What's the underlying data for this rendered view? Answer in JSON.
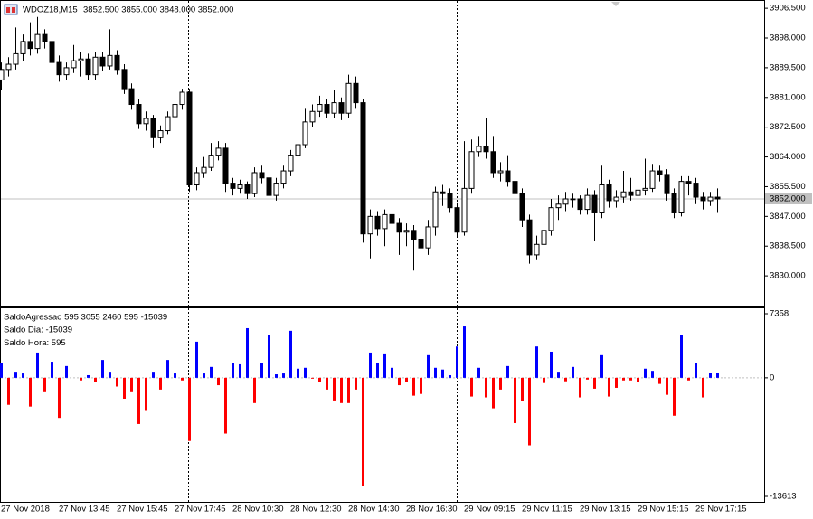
{
  "chart_data": [
    {
      "type": "candlestick",
      "title": "WDOZ18,M15",
      "subtitle": "3852.500 3855.000 3848.000 3852.000",
      "categories": [
        "27 Nov 2018",
        null,
        null,
        null,
        null,
        null,
        null,
        null,
        "27 Nov 13:45",
        null,
        null,
        null,
        null,
        null,
        null,
        null,
        "27 Nov 15:45",
        null,
        null,
        null,
        null,
        null,
        null,
        null,
        "27 Nov 17:45",
        null,
        null,
        null,
        null,
        null,
        null,
        null,
        "28 Nov 10:30",
        null,
        null,
        null,
        null,
        null,
        null,
        null,
        "28 Nov 12:30",
        null,
        null,
        null,
        null,
        null,
        null,
        null,
        "28 Nov 14:30",
        null,
        null,
        null,
        null,
        null,
        null,
        null,
        "28 Nov 16:30",
        null,
        null,
        null,
        null,
        null,
        null,
        null,
        "29 Nov 09:15",
        null,
        null,
        null,
        null,
        null,
        null,
        null,
        "29 Nov 11:15",
        null,
        null,
        null,
        null,
        null,
        null,
        null,
        "29 Nov 13:15",
        null,
        null,
        null,
        null,
        null,
        null,
        null,
        "29 Nov 15:15",
        null,
        null,
        null,
        null,
        null,
        null,
        null,
        "29 Nov 17:15",
        null,
        null,
        null
      ],
      "open": [
        3886.0,
        3889.0,
        3890.5,
        3893.5,
        3897.0,
        3895.0,
        3899.0,
        3897.0,
        3891.0,
        3887.5,
        3889.5,
        3891.5,
        3892.0,
        3887.5,
        3892.5,
        3890.0,
        3893.0,
        3889.0,
        3883.5,
        3879.0,
        3873.5,
        3875.0,
        3869.5,
        3871.5,
        3875.5,
        3879.0,
        3882.5,
        3856.0,
        3859.5,
        3861.0,
        3864.5,
        3866.5,
        3856.5,
        3855.0,
        3856.0,
        3853.5,
        3859.5,
        3858.0,
        3853.0,
        3856.5,
        3860.0,
        3864.5,
        3867.5,
        3874.0,
        3877.0,
        3879.0,
        3876.5,
        3879.5,
        3876.5,
        3885.0,
        3879.5,
        3842.0,
        3847.0,
        3843.5,
        3847.5,
        3845.0,
        3842.5,
        3843.0,
        3840.5,
        3838.0,
        3844.0,
        3854.0,
        3853.5,
        3849.5,
        3842.5,
        3855.0,
        3865.5,
        3867.0,
        3865.5,
        3859.5,
        3860.0,
        3857.0,
        3853.5,
        3846.0,
        3836.0,
        3839.0,
        3843.0,
        3849.5,
        3850.5,
        3852.0,
        3852.0,
        3849.0,
        3853.0,
        3848.0,
        3856.0,
        3851.5,
        3852.5,
        3854.0,
        3853.0,
        3854.5,
        3855.0,
        3860.0,
        3859.0,
        3853.5,
        3848.0,
        3857.0,
        3856.5,
        3852.5,
        3851.5,
        3852.5
      ],
      "high": [
        3891.0,
        3892.5,
        3901.0,
        3899.0,
        3902.5,
        3904.0,
        3900.5,
        3898.5,
        3893.0,
        3891.0,
        3896.0,
        3894.0,
        3893.5,
        3894.0,
        3894.0,
        3900.5,
        3894.5,
        3890.5,
        3885.0,
        3880.5,
        3877.0,
        3876.0,
        3873.0,
        3877.0,
        3880.5,
        3883.5,
        3883.5,
        3861.0,
        3864.0,
        3868.0,
        3868.5,
        3868.0,
        3858.0,
        3857.5,
        3857.0,
        3861.0,
        3861.5,
        3859.5,
        3858.0,
        3861.5,
        3866.0,
        3869.0,
        3878.0,
        3879.0,
        3881.5,
        3880.5,
        3883.0,
        3881.0,
        3887.5,
        3887.0,
        3880.5,
        3849.0,
        3848.5,
        3849.0,
        3850.5,
        3846.5,
        3845.0,
        3844.5,
        3842.0,
        3846.0,
        3855.5,
        3856.0,
        3855.0,
        3851.0,
        3868.5,
        3869.0,
        3870.0,
        3875.0,
        3870.0,
        3862.5,
        3864.5,
        3858.5,
        3855.0,
        3847.5,
        3841.5,
        3846.0,
        3852.0,
        3853.0,
        3854.0,
        3853.5,
        3853.0,
        3855.0,
        3854.5,
        3861.5,
        3857.5,
        3854.5,
        3860.0,
        3858.0,
        3857.0,
        3863.5,
        3862.0,
        3861.5,
        3860.5,
        3855.0,
        3858.5,
        3858.5,
        3858.0,
        3854.0,
        3854.0,
        3855.0
      ],
      "low": [
        3883.0,
        3887.0,
        3889.0,
        3891.5,
        3893.0,
        3893.5,
        3895.0,
        3889.0,
        3885.5,
        3886.0,
        3888.0,
        3887.0,
        3886.0,
        3886.0,
        3888.5,
        3889.0,
        3887.5,
        3882.0,
        3877.5,
        3872.0,
        3871.5,
        3866.5,
        3868.0,
        3870.5,
        3874.0,
        3877.5,
        3854.0,
        3854.5,
        3858.0,
        3860.0,
        3863.0,
        3854.0,
        3853.0,
        3853.5,
        3852.0,
        3852.5,
        3856.5,
        3844.5,
        3851.5,
        3855.0,
        3858.5,
        3863.0,
        3866.5,
        3872.5,
        3875.5,
        3875.0,
        3875.0,
        3874.5,
        3875.0,
        3878.0,
        3839.5,
        3835.0,
        3841.5,
        3838.5,
        3834.5,
        3836.0,
        3838.5,
        3831.5,
        3835.5,
        3836.0,
        3841.5,
        3850.0,
        3848.0,
        3841.0,
        3841.5,
        3853.5,
        3864.0,
        3863.5,
        3858.0,
        3857.0,
        3855.5,
        3851.0,
        3844.0,
        3833.5,
        3834.5,
        3837.5,
        3841.5,
        3846.0,
        3848.5,
        3849.5,
        3847.5,
        3847.5,
        3840.0,
        3846.5,
        3849.5,
        3849.5,
        3851.0,
        3851.5,
        3851.5,
        3853.0,
        3854.0,
        3857.0,
        3851.5,
        3846.5,
        3847.0,
        3853.0,
        3850.5,
        3849.0,
        3850.0,
        3848.0
      ],
      "close": [
        3889.0,
        3890.5,
        3893.5,
        3897.0,
        3895.0,
        3899.0,
        3897.0,
        3891.0,
        3887.5,
        3889.5,
        3891.5,
        3892.0,
        3887.5,
        3892.5,
        3890.0,
        3893.0,
        3889.0,
        3883.5,
        3879.0,
        3873.5,
        3875.0,
        3869.5,
        3871.5,
        3875.5,
        3879.0,
        3882.5,
        3856.0,
        3859.5,
        3861.0,
        3864.5,
        3866.5,
        3856.5,
        3855.0,
        3856.0,
        3853.5,
        3859.5,
        3858.0,
        3853.0,
        3856.5,
        3860.0,
        3864.5,
        3867.5,
        3874.0,
        3877.0,
        3879.0,
        3876.5,
        3879.5,
        3876.5,
        3885.0,
        3879.5,
        3842.0,
        3847.0,
        3843.5,
        3847.5,
        3845.0,
        3842.5,
        3843.0,
        3840.5,
        3838.0,
        3844.0,
        3854.0,
        3853.5,
        3849.5,
        3842.5,
        3855.0,
        3865.5,
        3867.0,
        3865.5,
        3859.5,
        3860.0,
        3857.0,
        3853.5,
        3846.0,
        3836.0,
        3839.0,
        3843.0,
        3849.5,
        3850.5,
        3852.0,
        3852.0,
        3849.0,
        3853.0,
        3848.0,
        3856.0,
        3851.5,
        3852.5,
        3854.0,
        3853.0,
        3854.5,
        3855.0,
        3860.0,
        3859.0,
        3853.5,
        3848.0,
        3857.0,
        3856.5,
        3852.5,
        3851.5,
        3852.5,
        3852.0
      ],
      "up_color": "#ffffff",
      "down_color": "#000000",
      "ylim": [
        3821.5,
        3908.6
      ],
      "yticks": [
        {
          "value": 3906.5,
          "label": "3906.500"
        },
        {
          "value": 3898,
          "label": "3898.000"
        },
        {
          "value": 3889.5,
          "label": "3889.500"
        },
        {
          "value": 3881,
          "label": "3881.000"
        },
        {
          "value": 3872.5,
          "label": "3872.500"
        },
        {
          "value": 3864,
          "label": "3864.000"
        },
        {
          "value": 3855.5,
          "label": "3855.500"
        },
        {
          "value": 3847,
          "label": "3847.000"
        },
        {
          "value": 3838.5,
          "label": "3838.500"
        },
        {
          "value": 3830,
          "label": "3830.000"
        }
      ],
      "last_price": {
        "value": 3852,
        "label": "3852.000"
      }
    },
    {
      "type": "bar",
      "title": "SaldoAgressao 595 3055 2460 595 -15039",
      "annotations": [
        {
          "text": "Saldo Dia: -15039",
          "color": "#ff0000"
        },
        {
          "text": "Saldo Hora: 595",
          "color": "#0000ff"
        }
      ],
      "values": [
        1750,
        -3100,
        700,
        500,
        -3300,
        2900,
        -1550,
        1850,
        -4600,
        1350,
        0,
        -300,
        300,
        -500,
        2050,
        700,
        -1000,
        -2400,
        -1550,
        -5300,
        -3800,
        700,
        -1350,
        2050,
        500,
        -300,
        -7250,
        4150,
        500,
        1250,
        -850,
        -6400,
        1750,
        1550,
        5700,
        -2900,
        1750,
        4950,
        400,
        500,
        5400,
        1050,
        1150,
        -100,
        -500,
        -1350,
        -2600,
        -2900,
        -2900,
        -1350,
        -12400,
        2900,
        1750,
        2800,
        1150,
        -850,
        -500,
        -2050,
        -1850,
        2600,
        1150,
        950,
        300,
        3600,
        5900,
        -2150,
        1150,
        -2250,
        -3500,
        -1350,
        1350,
        -5200,
        -2700,
        -7750,
        3600,
        -600,
        3000,
        700,
        -400,
        1250,
        -2250,
        -200,
        -1250,
        2600,
        -2150,
        -1150,
        -300,
        -300,
        -500,
        1050,
        800,
        -700,
        -1950,
        -4350,
        4950,
        -300,
        1750,
        -2250,
        600,
        595
      ],
      "positive_color": "#0000ff",
      "negative_color": "#ff0000",
      "ylim": [
        -13613,
        7358
      ],
      "yticks": [
        7358,
        0,
        -13613
      ]
    }
  ]
}
